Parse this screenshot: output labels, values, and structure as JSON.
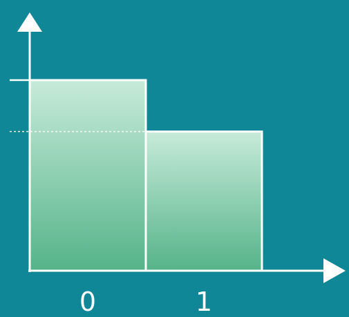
{
  "chart_data": {
    "type": "bar",
    "categories": [
      "0",
      "1"
    ],
    "values": [
      1.0,
      0.73
    ],
    "title": "",
    "xlabel": "",
    "ylabel": "",
    "ylim": [
      0,
      1.0
    ],
    "grid": false,
    "reference_line": {
      "value": 0.73,
      "style": "dotted"
    }
  },
  "colors": {
    "background": "#0f8796",
    "axis": "#ffffff",
    "bar_fill_top": "#c7ebd9",
    "bar_fill_bottom": "#55b389",
    "bar_stroke": "#ffffff"
  },
  "icons": {
    "x_axis_head": "arrow-right-icon",
    "y_axis_head": "arrow-up-icon"
  }
}
